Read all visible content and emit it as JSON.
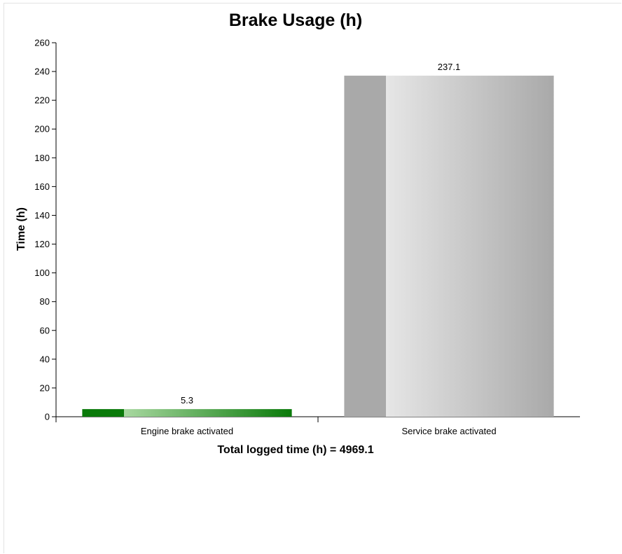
{
  "chart_data": {
    "type": "bar",
    "title": "Brake Usage (h)",
    "ylabel": "Time (h)",
    "xlabel": "Total logged time (h) = 4969.1",
    "categories": [
      "Engine brake activated",
      "Service brake activated"
    ],
    "values": [
      5.3,
      237.1
    ],
    "value_labels": [
      "5.3",
      "237.1"
    ],
    "ylim": [
      0,
      260
    ],
    "yticks": [
      0,
      20,
      40,
      60,
      80,
      100,
      120,
      140,
      160,
      180,
      200,
      220,
      240,
      260
    ],
    "grid": false,
    "legend": "none",
    "colors": {
      "engine_dark": "#0a7a0a",
      "engine_light": "#a8d8a0",
      "service_dark": "#a9a9a9",
      "service_light": "#e6e6e6"
    }
  }
}
